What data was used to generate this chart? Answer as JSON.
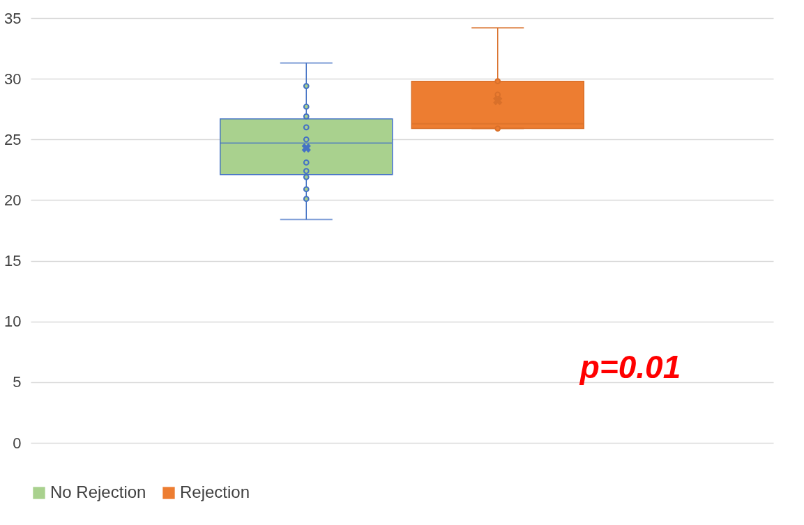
{
  "chart_data": {
    "type": "box",
    "categories": [
      null
    ],
    "ylim": [
      0,
      35
    ],
    "yticks": [
      0,
      5,
      10,
      15,
      20,
      25,
      30,
      35
    ],
    "grid": "y",
    "legend": "bottom",
    "tick_labels": "y",
    "annotations": [
      "p=0.01"
    ],
    "series": [
      {
        "name": "No Rejection",
        "color": "#a9d18e",
        "boxes": [
          {
            "low": 18.4,
            "q1": 22.1,
            "median": 24.7,
            "q3": 26.7,
            "high": 31.3,
            "mean": 24.3
          }
        ]
      },
      {
        "name": "Rejection",
        "color": "#ed7d31",
        "boxes": [
          {
            "low": 25.9,
            "q1": 25.9,
            "median": 26.3,
            "q3": 29.8,
            "high": 34.2,
            "mean": 28.2
          }
        ]
      },
      {
        "type": "scatter",
        "color": "#4472c4",
        "x": [
          null,
          null,
          null,
          null,
          null,
          null,
          null,
          null,
          null,
          null
        ],
        "values": [
          29.4,
          27.7,
          26.9,
          26.0,
          25.0,
          23.1,
          22.4,
          21.9,
          20.9,
          20.1
        ]
      },
      {
        "type": "scatter",
        "color": "#d9702a",
        "x": [
          null,
          null,
          null
        ],
        "values": [
          29.8,
          28.7,
          25.9
        ]
      }
    ]
  }
}
